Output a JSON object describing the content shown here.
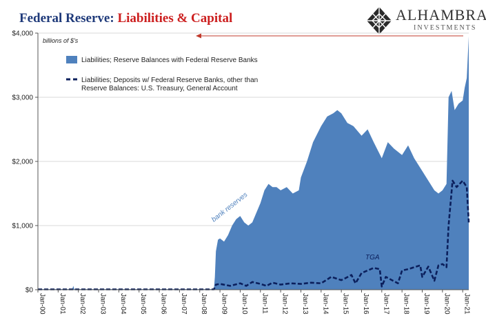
{
  "header": {
    "title_part1": "Federal Reserve: ",
    "title_part2": "Liabilities & Capital"
  },
  "logo": {
    "name": "ALHAMBRA",
    "subtitle": "INVESTMENTS",
    "icon": "diamond-lattice-logo"
  },
  "colors": {
    "reserves_fill": "#4f81bd",
    "tga_line": "#0b1f5c",
    "title_blue": "#1f3a7a",
    "title_red": "#cc1f1f",
    "arrow": "#c0392b"
  },
  "chart_data": {
    "type": "area",
    "unit_label": "billions of $'s",
    "ylim": [
      0,
      4000
    ],
    "y_ticks": [
      0,
      1000,
      2000,
      3000,
      4000
    ],
    "y_tick_labels": [
      "$0",
      "$1,000",
      "$2,000",
      "$3,000",
      "$4,000"
    ],
    "x_range": [
      2000.0,
      2021.3
    ],
    "x_ticks": [
      2000,
      2001,
      2002,
      2003,
      2004,
      2005,
      2006,
      2007,
      2008,
      2009,
      2010,
      2011,
      2012,
      2013,
      2014,
      2015,
      2016,
      2017,
      2018,
      2019,
      2020,
      2021
    ],
    "x_tick_labels": [
      "Jan-00",
      "Jan-01",
      "Jan-02",
      "Jan-03",
      "Jan-04",
      "Jan-05",
      "Jan-06",
      "Jan-07",
      "Jan-08",
      "Jan-09",
      "Jan-10",
      "Jan-11",
      "Jan-12",
      "Jan-13",
      "Jan-14",
      "Jan-15",
      "Jan-16",
      "Jan-17",
      "Jan-18",
      "Jan-19",
      "Jan-20",
      "Jan-21"
    ],
    "annotations": [
      "bank reserves",
      "TGA"
    ],
    "series": [
      {
        "name": "Liabilities; Reserve Balances with Federal Reserve Banks",
        "style": "area",
        "x": [
          2000.0,
          2001.0,
          2001.7,
          2001.75,
          2001.8,
          2002.0,
          2003.0,
          2004.0,
          2005.0,
          2006.0,
          2007.0,
          2008.0,
          2008.7,
          2008.75,
          2008.8,
          2008.9,
          2009.0,
          2009.2,
          2009.4,
          2009.6,
          2009.8,
          2010.0,
          2010.2,
          2010.4,
          2010.6,
          2010.8,
          2011.0,
          2011.2,
          2011.4,
          2011.6,
          2011.8,
          2012.0,
          2012.3,
          2012.6,
          2012.9,
          2013.0,
          2013.3,
          2013.6,
          2014.0,
          2014.3,
          2014.6,
          2014.8,
          2015.0,
          2015.3,
          2015.6,
          2016.0,
          2016.3,
          2016.6,
          2017.0,
          2017.3,
          2017.6,
          2018.0,
          2018.3,
          2018.6,
          2019.0,
          2019.3,
          2019.6,
          2019.8,
          2020.0,
          2020.2,
          2020.3,
          2020.45,
          2020.6,
          2020.8,
          2021.0,
          2021.1,
          2021.2,
          2021.3
        ],
        "values": [
          10,
          10,
          10,
          60,
          10,
          10,
          10,
          10,
          10,
          10,
          10,
          10,
          10,
          200,
          600,
          780,
          800,
          750,
          850,
          1000,
          1100,
          1150,
          1050,
          1000,
          1050,
          1200,
          1350,
          1550,
          1650,
          1600,
          1600,
          1550,
          1600,
          1500,
          1550,
          1750,
          2000,
          2300,
          2550,
          2700,
          2750,
          2800,
          2750,
          2600,
          2550,
          2400,
          2500,
          2300,
          2050,
          2300,
          2200,
          2100,
          2250,
          2050,
          1850,
          1700,
          1550,
          1500,
          1550,
          1650,
          3000,
          3100,
          2800,
          2900,
          2950,
          3150,
          3300,
          3950
        ]
      },
      {
        "name": "Liabilities; Deposits w/ Federal Reserve Banks, other than Reserve Balances: U.S. Treasury, General Account",
        "style": "dashed-line",
        "x": [
          2000.0,
          2001.0,
          2002.0,
          2003.0,
          2004.0,
          2005.0,
          2006.0,
          2007.0,
          2008.0,
          2008.7,
          2008.8,
          2009.0,
          2009.5,
          2010.0,
          2010.3,
          2010.6,
          2011.0,
          2011.3,
          2011.6,
          2012.0,
          2012.5,
          2013.0,
          2013.5,
          2014.0,
          2014.5,
          2015.0,
          2015.2,
          2015.5,
          2015.7,
          2016.0,
          2016.3,
          2016.6,
          2016.9,
          2017.0,
          2017.2,
          2017.5,
          2017.8,
          2018.0,
          2018.3,
          2018.6,
          2018.9,
          2019.0,
          2019.3,
          2019.6,
          2019.8,
          2020.0,
          2020.2,
          2020.3,
          2020.5,
          2020.7,
          2021.0,
          2021.1,
          2021.2,
          2021.3
        ],
        "values": [
          5,
          5,
          5,
          5,
          5,
          5,
          5,
          5,
          5,
          5,
          80,
          90,
          60,
          100,
          60,
          120,
          90,
          60,
          110,
          80,
          100,
          90,
          110,
          100,
          200,
          150,
          180,
          230,
          100,
          260,
          300,
          340,
          320,
          50,
          200,
          150,
          100,
          300,
          320,
          350,
          380,
          200,
          360,
          140,
          380,
          400,
          350,
          1000,
          1700,
          1600,
          1700,
          1650,
          1600,
          1050
        ]
      }
    ]
  }
}
